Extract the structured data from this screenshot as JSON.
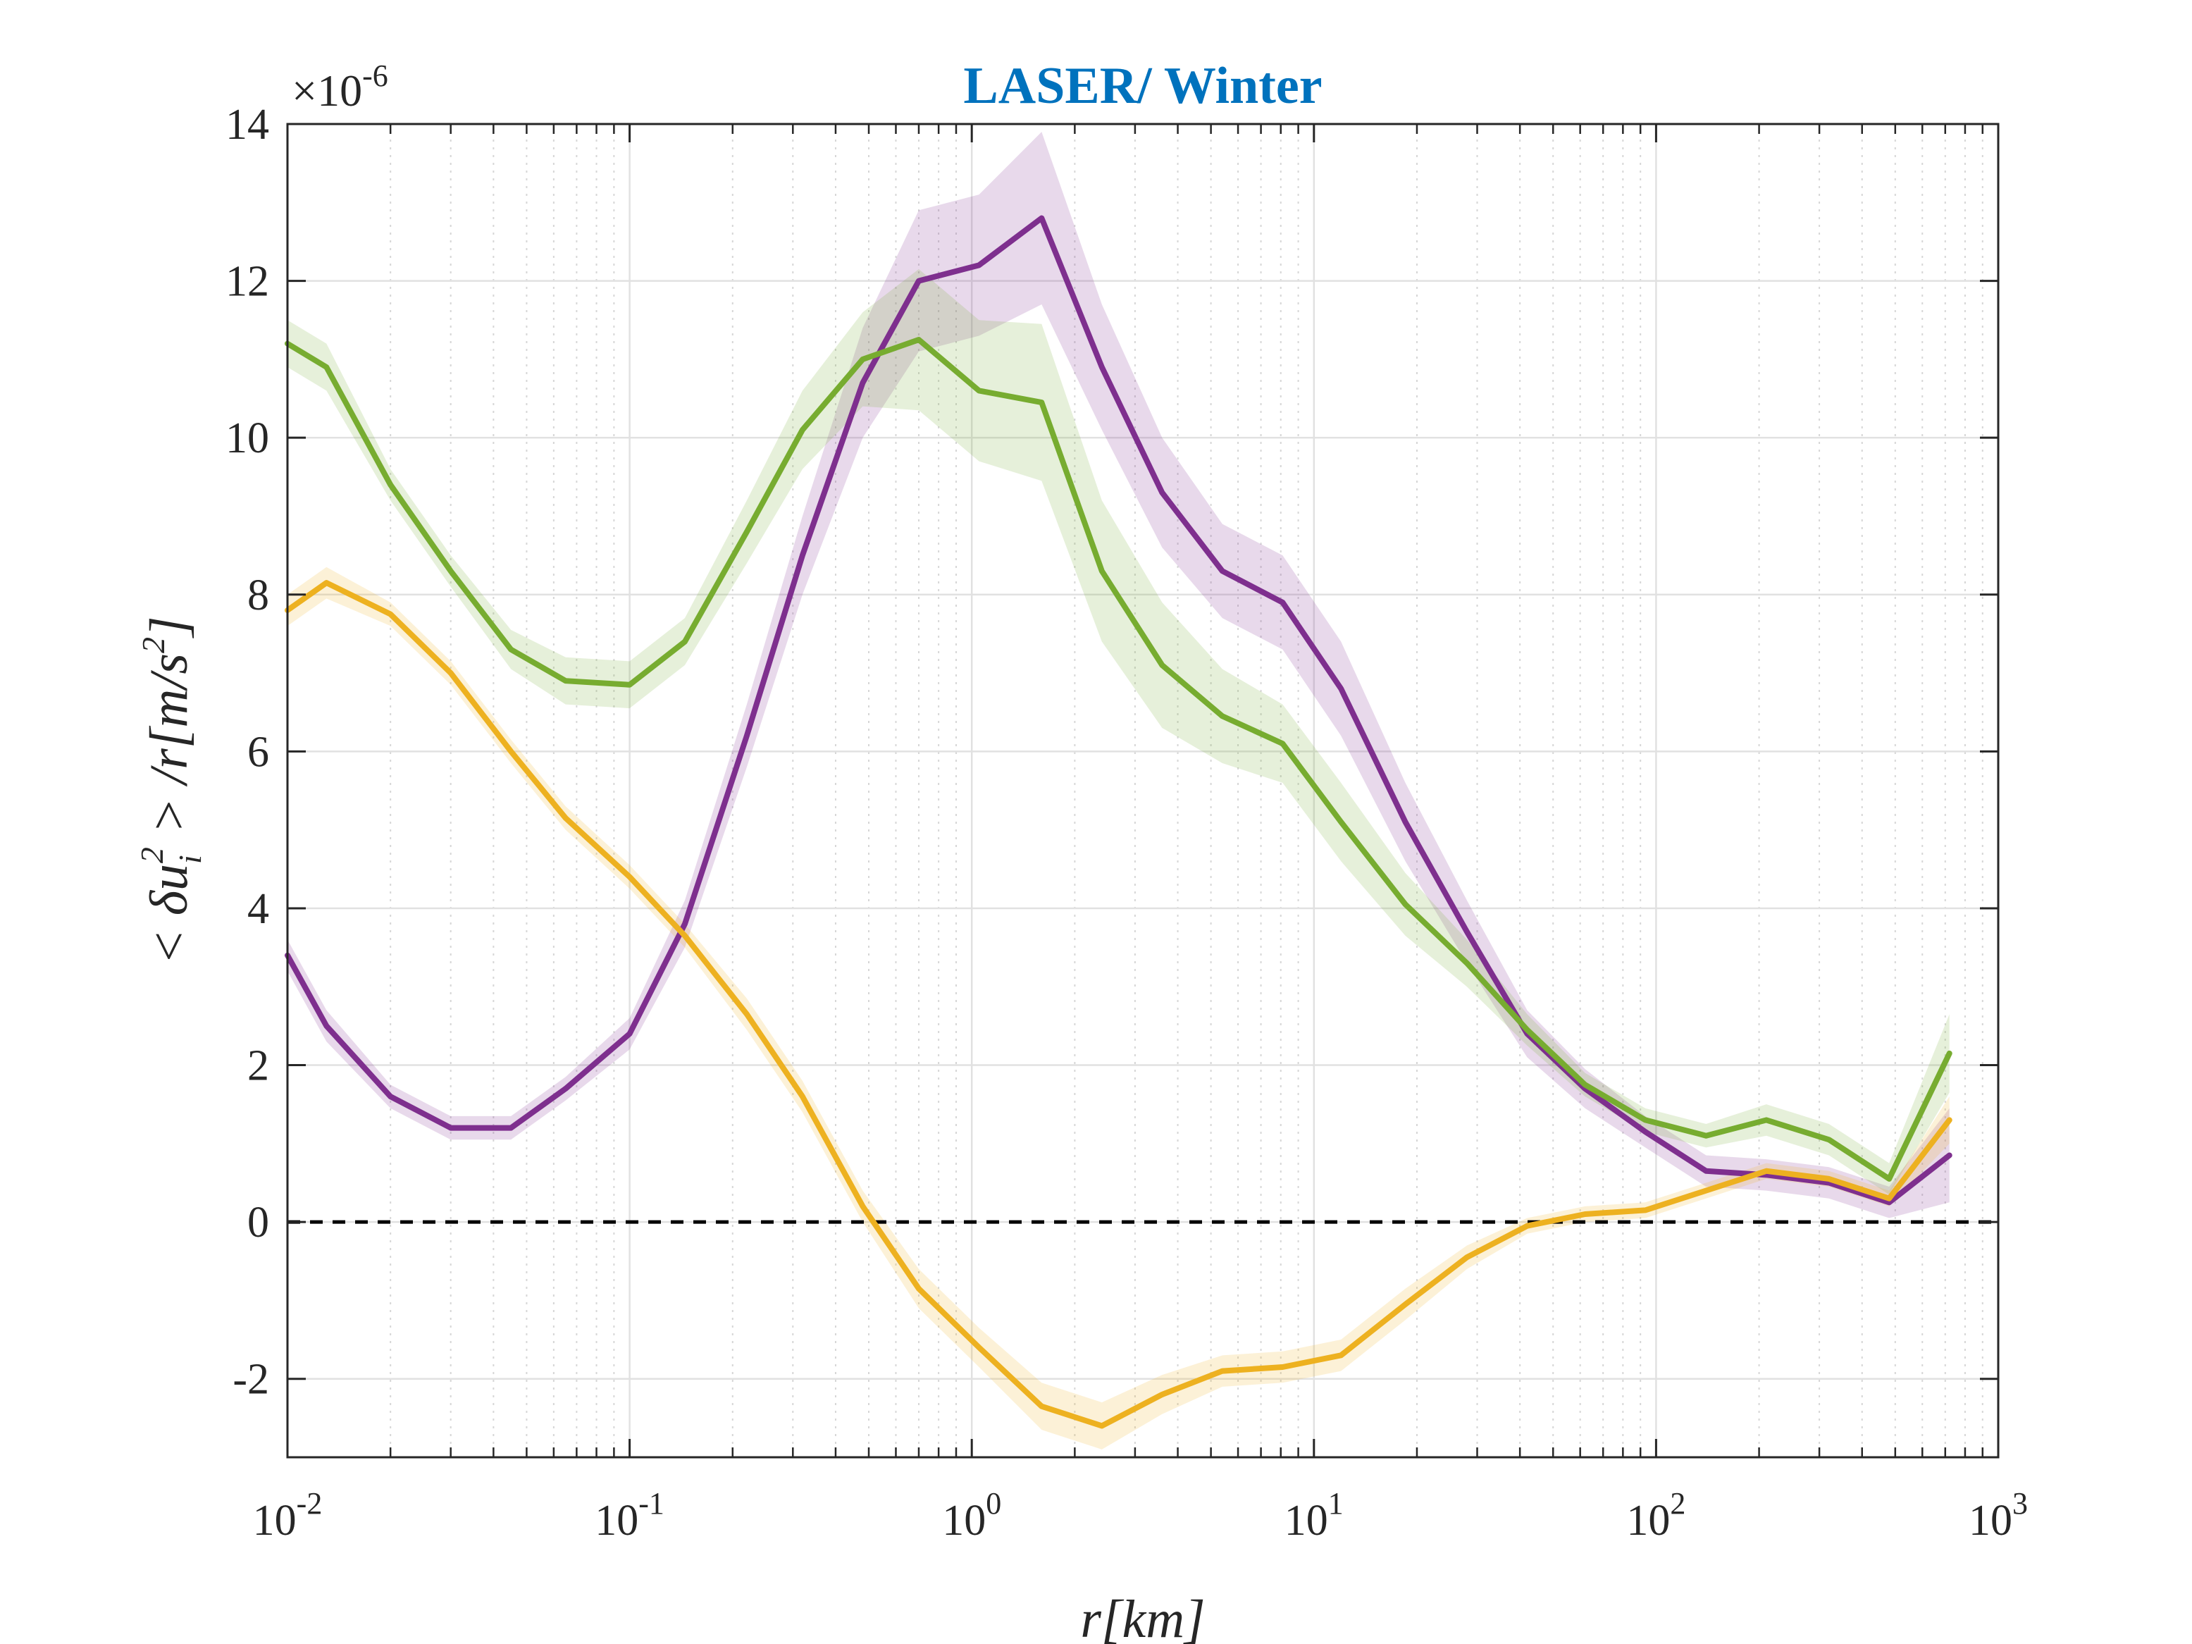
{
  "chart_data": {
    "type": "line",
    "title": "LASER/ Winter",
    "xlabel": "r[km]",
    "ylabel": "< δu_i^2 > /r[m/s^2]",
    "ylabel_parts": {
      "lhs": "< δu",
      "sub": "i",
      "sup": "2",
      "rhs": " > /r[m/s",
      "sup2": "2",
      "end": "]"
    },
    "y_multiplier": "×10",
    "y_multiplier_exp": "-6",
    "xscale": "log",
    "xlim": [
      0.01,
      1000
    ],
    "ylim": [
      -3,
      14
    ],
    "y_ticks": [
      -2,
      0,
      2,
      4,
      6,
      8,
      10,
      12,
      14
    ],
    "y_tick_labels": [
      "-2",
      "0",
      "2",
      "4",
      "6",
      "8",
      "10",
      "12",
      "14"
    ],
    "x_ticks": [
      0.01,
      0.1,
      1,
      10,
      100,
      1000
    ],
    "x_tick_labels": [
      {
        "base": "10",
        "exp": "-2"
      },
      {
        "base": "10",
        "exp": "-1"
      },
      {
        "base": "10",
        "exp": "0"
      },
      {
        "base": "10",
        "exp": "1"
      },
      {
        "base": "10",
        "exp": "2"
      },
      {
        "base": "10",
        "exp": "3"
      }
    ],
    "grid": true,
    "reference_line": {
      "y": 0,
      "style": "dashed",
      "color": "#000000"
    },
    "x": [
      0.01,
      0.013,
      0.02,
      0.03,
      0.045,
      0.065,
      0.1,
      0.145,
      0.22,
      0.32,
      0.48,
      0.7,
      1.05,
      1.6,
      2.4,
      3.6,
      5.4,
      8.1,
      12,
      18.5,
      28,
      42,
      62,
      93,
      140,
      210,
      320,
      480,
      720
    ],
    "series": [
      {
        "color": "#7e2f8e",
        "values": [
          3.4,
          2.5,
          1.6,
          1.2,
          1.2,
          1.7,
          2.4,
          3.8,
          6.2,
          8.5,
          10.7,
          12.0,
          12.2,
          12.8,
          10.9,
          9.3,
          8.3,
          7.9,
          6.8,
          5.1,
          3.7,
          2.4,
          1.7,
          1.15,
          0.65,
          0.6,
          0.5,
          0.25,
          0.85
        ],
        "band": [
          0.2,
          0.2,
          0.15,
          0.15,
          0.15,
          0.15,
          0.2,
          0.3,
          0.4,
          0.5,
          0.7,
          0.9,
          0.9,
          1.1,
          0.8,
          0.7,
          0.6,
          0.6,
          0.6,
          0.5,
          0.4,
          0.3,
          0.25,
          0.2,
          0.2,
          0.2,
          0.2,
          0.2,
          0.6
        ]
      },
      {
        "color": "#77ac30",
        "values": [
          11.2,
          10.9,
          9.4,
          8.3,
          7.3,
          6.9,
          6.85,
          7.4,
          8.8,
          10.1,
          11.0,
          11.25,
          10.6,
          10.45,
          8.3,
          7.1,
          6.45,
          6.1,
          5.1,
          4.05,
          3.3,
          2.45,
          1.75,
          1.3,
          1.1,
          1.3,
          1.05,
          0.55,
          2.15
        ],
        "band": [
          0.3,
          0.3,
          0.2,
          0.2,
          0.25,
          0.3,
          0.3,
          0.3,
          0.4,
          0.5,
          0.6,
          0.9,
          0.9,
          1.0,
          0.9,
          0.8,
          0.6,
          0.5,
          0.5,
          0.4,
          0.3,
          0.2,
          0.15,
          0.15,
          0.15,
          0.2,
          0.2,
          0.2,
          0.5
        ]
      },
      {
        "color": "#edb120",
        "values": [
          7.8,
          8.15,
          7.75,
          7.0,
          6.0,
          5.15,
          4.4,
          3.65,
          2.65,
          1.6,
          0.2,
          -0.85,
          -1.6,
          -2.35,
          -2.6,
          -2.2,
          -1.9,
          -1.85,
          -1.7,
          -1.05,
          -0.45,
          -0.05,
          0.1,
          0.15,
          0.4,
          0.65,
          0.55,
          0.3,
          1.3
        ],
        "band": [
          0.2,
          0.2,
          0.15,
          0.15,
          0.15,
          0.15,
          0.15,
          0.15,
          0.2,
          0.2,
          0.2,
          0.25,
          0.25,
          0.3,
          0.3,
          0.25,
          0.2,
          0.2,
          0.2,
          0.2,
          0.15,
          0.1,
          0.1,
          0.1,
          0.1,
          0.1,
          0.1,
          0.1,
          0.3
        ]
      }
    ]
  }
}
